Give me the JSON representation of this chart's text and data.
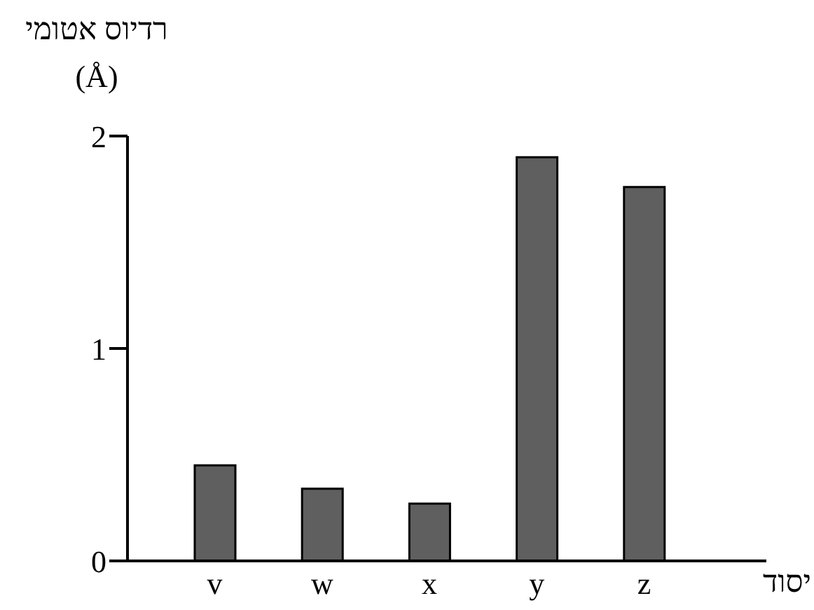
{
  "chart_data": {
    "type": "bar",
    "ylabel": "רדיוס אטומי\n(Å)",
    "xlabel": "יסוד",
    "categories": [
      "v",
      "w",
      "x",
      "y",
      "z"
    ],
    "values": [
      0.45,
      0.34,
      0.27,
      1.9,
      1.76
    ],
    "color": "#5f5f5f",
    "ylim": [
      0,
      2
    ],
    "yticks": [
      0,
      1,
      2
    ],
    "grid": false
  }
}
